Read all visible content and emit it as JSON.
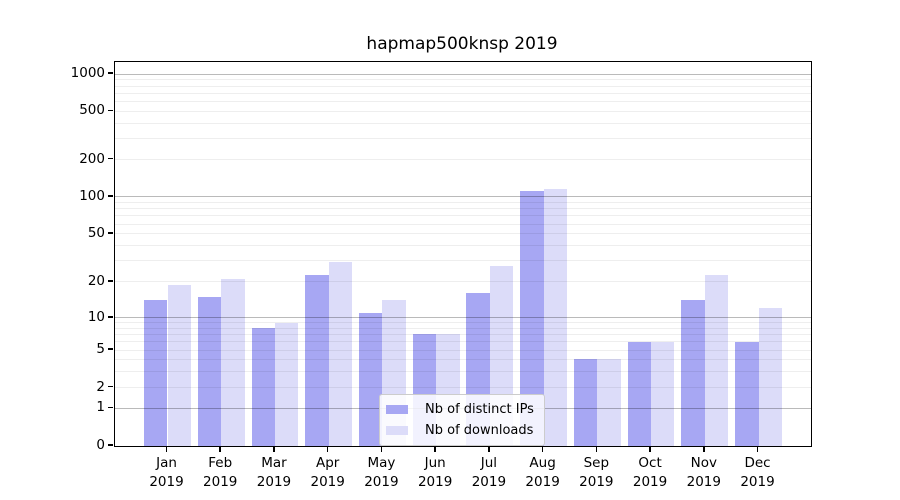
{
  "title": "hapmap500knsp 2019",
  "colors": {
    "bar_distinct_ips": "#a7a7f3",
    "bar_downloads": "#dcdcf9",
    "major_gridline": "#bababa",
    "minor_gridline": "#ededed"
  },
  "legend": {
    "items": [
      {
        "label": "Nb of distinct IPs",
        "color": "#a7a7f3"
      },
      {
        "label": "Nb of downloads",
        "color": "#dcdcf9"
      }
    ]
  },
  "x_axis": {
    "months": [
      "Jan",
      "Feb",
      "Mar",
      "Apr",
      "May",
      "Jun",
      "Jul",
      "Aug",
      "Sep",
      "Oct",
      "Nov",
      "Dec"
    ],
    "year": "2019"
  },
  "y_axis": {
    "tick_labels": [
      "0",
      "1",
      "2",
      "5",
      "10",
      "20",
      "50",
      "100",
      "200",
      "500",
      "1000"
    ],
    "tick_values": [
      0,
      1,
      2,
      5,
      10,
      20,
      50,
      100,
      200,
      500,
      1000
    ]
  },
  "chart_data": {
    "type": "bar",
    "title": "hapmap500knsp 2019",
    "categories": [
      "Jan 2019",
      "Feb 2019",
      "Mar 2019",
      "Apr 2019",
      "May 2019",
      "Jun 2019",
      "Jul 2019",
      "Aug 2019",
      "Sep 2019",
      "Oct 2019",
      "Nov 2019",
      "Dec 2019"
    ],
    "series": [
      {
        "name": "Nb of distinct IPs",
        "values": [
          14,
          15,
          8,
          23,
          11,
          7,
          16,
          112,
          4,
          6,
          14,
          6
        ]
      },
      {
        "name": "Nb of downloads",
        "values": [
          19,
          21,
          9,
          29,
          14,
          7,
          27,
          116,
          4,
          6,
          23,
          12
        ]
      }
    ],
    "xlabel": "",
    "ylabel": "",
    "y_ticks": [
      0,
      1,
      2,
      5,
      10,
      20,
      50,
      100,
      200,
      500,
      1000
    ],
    "ylim": [
      0,
      1400
    ],
    "yscale": "symlog-like (linear 0-1, log above)",
    "grid": "horizontal major at 1,10,100,1000; faint log minors",
    "legend_position": "lower center inside plot"
  }
}
